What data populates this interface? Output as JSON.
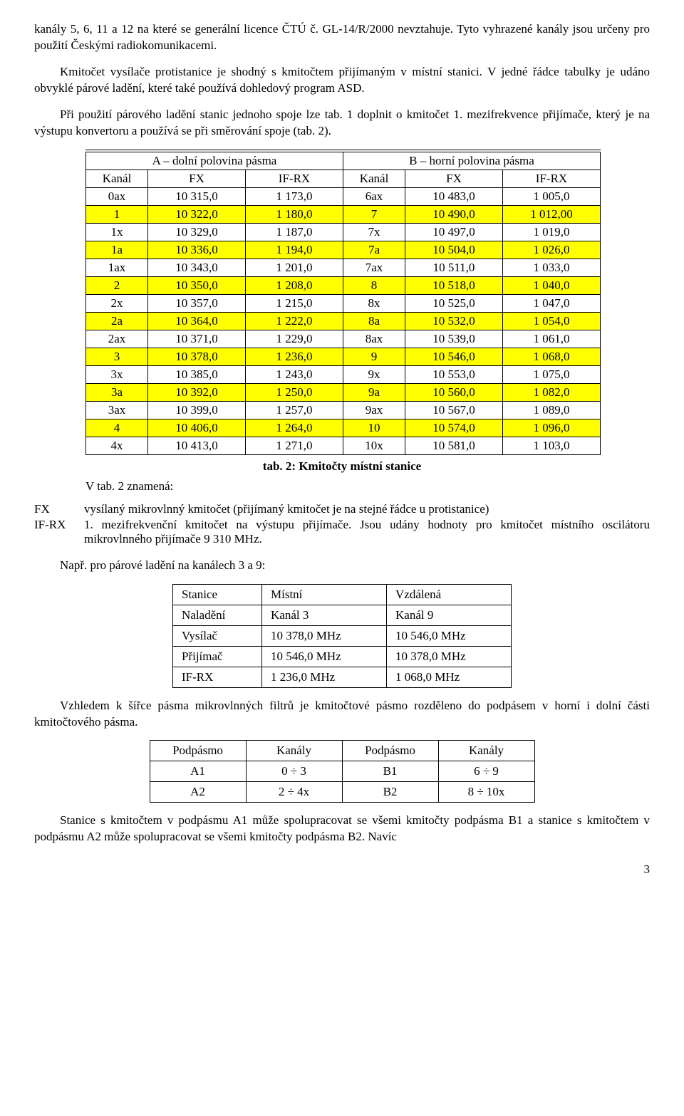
{
  "para1": "kanály 5, 6, 11 a 12 na které se generální licence ČTÚ č. GL-14/R/2000 nevztahuje. Tyto vyhrazené kanály jsou určeny pro použití Českými radiokomunikacemi.",
  "para2": "Kmitočet vysílače protistanice je shodný s kmitočtem přijímaným v místní stanici. V jedné řádce tabulky je udáno obvyklé párové ladění, které také používá dohledový program ASD.",
  "para3": "Při použití párového ladění stanic jednoho spoje lze tab. 1 doplnit o kmitočet 1. mezifrekvence přijímače, který je na výstupu konvertoru a používá se při směrování spoje (tab. 2).",
  "freq_table": {
    "head_a": "A – dolní polovina pásma",
    "head_b": "B – horní polovina pásma",
    "cols": [
      "Kanál",
      "FX",
      "IF-RX",
      "Kanál",
      "FX",
      "IF-RX"
    ],
    "rows": [
      {
        "hl": false,
        "c": [
          "0ax",
          "10 315,0",
          "1 173,0",
          "6ax",
          "10 483,0",
          "1 005,0"
        ]
      },
      {
        "hl": true,
        "c": [
          "1",
          "10 322,0",
          "1 180,0",
          "7",
          "10 490,0",
          "1 012,00"
        ]
      },
      {
        "hl": false,
        "c": [
          "1x",
          "10 329,0",
          "1 187,0",
          "7x",
          "10 497,0",
          "1 019,0"
        ]
      },
      {
        "hl": true,
        "c": [
          "1a",
          "10 336,0",
          "1 194,0",
          "7a",
          "10 504,0",
          "1 026,0"
        ]
      },
      {
        "hl": false,
        "c": [
          "1ax",
          "10 343,0",
          "1 201,0",
          "7ax",
          "10 511,0",
          "1 033,0"
        ]
      },
      {
        "hl": true,
        "c": [
          "2",
          "10 350,0",
          "1 208,0",
          "8",
          "10 518,0",
          "1 040,0"
        ]
      },
      {
        "hl": false,
        "c": [
          "2x",
          "10 357,0",
          "1 215,0",
          "8x",
          "10 525,0",
          "1 047,0"
        ]
      },
      {
        "hl": true,
        "c": [
          "2a",
          "10 364,0",
          "1 222,0",
          "8a",
          "10 532,0",
          "1 054,0"
        ]
      },
      {
        "hl": false,
        "c": [
          "2ax",
          "10 371,0",
          "1 229,0",
          "8ax",
          "10 539,0",
          "1 061,0"
        ]
      },
      {
        "hl": true,
        "c": [
          "3",
          "10 378,0",
          "1 236,0",
          "9",
          "10 546,0",
          "1 068,0"
        ]
      },
      {
        "hl": false,
        "c": [
          "3x",
          "10 385,0",
          "1 243,0",
          "9x",
          "10 553,0",
          "1 075,0"
        ]
      },
      {
        "hl": true,
        "c": [
          "3a",
          "10 392,0",
          "1 250,0",
          "9a",
          "10 560,0",
          "1 082,0"
        ]
      },
      {
        "hl": false,
        "c": [
          "3ax",
          "10 399,0",
          "1 257,0",
          "9ax",
          "10 567,0",
          "1 089,0"
        ]
      },
      {
        "hl": true,
        "c": [
          "4",
          "10 406,0",
          "1 264,0",
          "10",
          "10 574,0",
          "1 096,0"
        ]
      },
      {
        "hl": false,
        "c": [
          "4x",
          "10 413,0",
          "1 271,0",
          "10x",
          "10 581,0",
          "1 103,0"
        ]
      }
    ]
  },
  "caption1": "tab. 2: Kmitočty místní stanice",
  "vtab_line": "V tab. 2 znamená:",
  "def_fx_label": "FX",
  "def_fx_text": "vysílaný mikrovlnný kmitočet (přijímaný kmitočet je na stejné řádce u protistanice)",
  "def_ifrx_label": "IF-RX",
  "def_ifrx_text": "1. mezifrekvenční kmitočet na výstupu přijímače. Jsou udány hodnoty pro kmitočet místního oscilátoru mikrovlnného přijímače 9 310 MHz.",
  "example_intro": "Např. pro párové ladění na kanálech 3 a 9:",
  "pair_table": {
    "rows": [
      [
        "Stanice",
        "Místní",
        "Vzdálená"
      ],
      [
        "Naladění",
        "Kanál 3",
        "Kanál 9"
      ],
      [
        "Vysílač",
        "10 378,0 MHz",
        "10 546,0 MHz"
      ],
      [
        "Přijímač",
        "10 546,0 MHz",
        "10 378,0 MHz"
      ],
      [
        "IF-RX",
        "1 236,0 MHz",
        "1 068,0 MHz"
      ]
    ]
  },
  "para4": "Vzhledem k šířce pásma mikrovlnných filtrů je kmitočtové pásmo rozděleno do podpásem v horní i dolní části kmitočtového pásma.",
  "sub_table": {
    "rows": [
      [
        "Podpásmo",
        "Kanály",
        "Podpásmo",
        "Kanály"
      ],
      [
        "A1",
        "0 ÷ 3",
        "B1",
        "6 ÷ 9"
      ],
      [
        "A2",
        "2 ÷ 4x",
        "B2",
        "8 ÷ 10x"
      ]
    ]
  },
  "para5": "Stanice s kmitočtem v podpásmu A1 může spolupracovat se všemi kmitočty podpásma B1 a stanice s kmitočtem v podpásmu A2 může spolupracovat se všemi kmitočty podpásma B2. Navíc",
  "page_number": "3"
}
